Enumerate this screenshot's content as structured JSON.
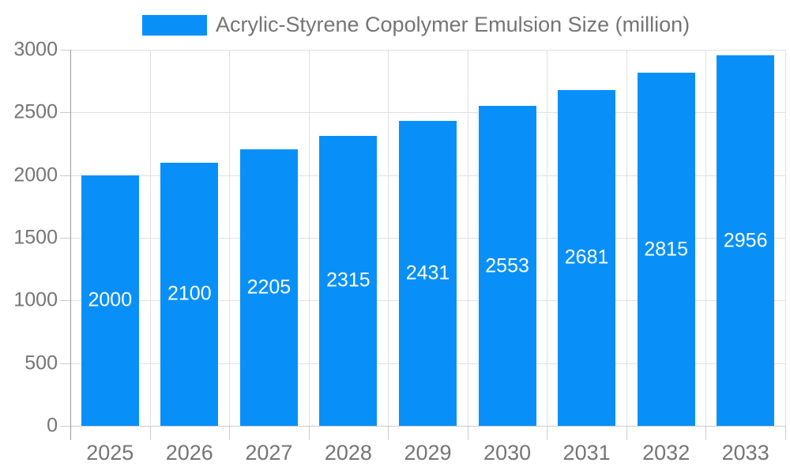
{
  "legend": {
    "label": "Acrylic-Styrene Copolymer Emulsion Size (million)"
  },
  "chart_data": {
    "type": "bar",
    "title": "",
    "series_name": "Acrylic-Styrene Copolymer Emulsion Size (million)",
    "categories": [
      "2025",
      "2026",
      "2027",
      "2028",
      "2029",
      "2030",
      "2031",
      "2032",
      "2033"
    ],
    "values": [
      2000,
      2100,
      2205,
      2315,
      2431,
      2553,
      2681,
      2815,
      2956
    ],
    "value_labels_shown": true,
    "yticks": [
      0,
      500,
      1000,
      1500,
      2000,
      2500,
      3000
    ],
    "ylim": [
      0,
      3000
    ],
    "xlabel": "",
    "ylabel": "",
    "grid": true,
    "legend_position": "top",
    "colors": {
      "bar": "#0890f8",
      "value_label_text": "#ffffff",
      "axis_text": "#757575",
      "legend_text": "#757575",
      "gridline": "#e1e1e1",
      "tick": "#cccccc",
      "y_axis_line": "#999999",
      "x_axis_line": "#cccccc",
      "background": "#ffffff"
    }
  }
}
